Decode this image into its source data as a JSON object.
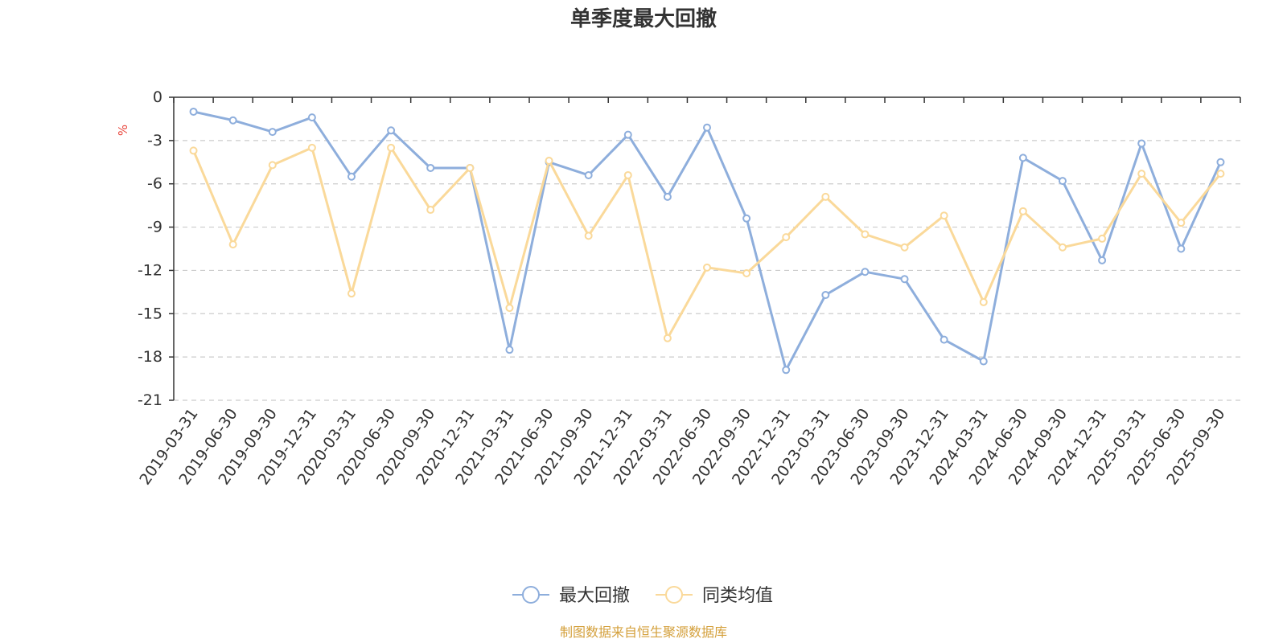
{
  "chart_data": {
    "type": "line",
    "title": "单季度最大回撤",
    "ylabel": "%",
    "xlabel": "",
    "ylim": [
      -21,
      0
    ],
    "yticks": [
      0,
      -3,
      -6,
      -9,
      -12,
      -15,
      -18,
      -21
    ],
    "grid": true,
    "legend_position": "bottom-center",
    "categories": [
      "2019-03-31",
      "2019-06-30",
      "2019-09-30",
      "2019-12-31",
      "2020-03-31",
      "2020-06-30",
      "2020-09-30",
      "2020-12-31",
      "2021-03-31",
      "2021-06-30",
      "2021-09-30",
      "2021-12-31",
      "2022-03-31",
      "2022-06-30",
      "2022-09-30",
      "2022-12-31",
      "2023-03-31",
      "2023-06-30",
      "2023-09-30",
      "2023-12-31",
      "2024-03-31",
      "2024-06-30",
      "2024-09-30",
      "2024-12-31",
      "2025-03-31",
      "2025-06-30",
      "2025-09-30"
    ],
    "series": [
      {
        "name": "最大回撤",
        "color": "#8eaedc",
        "values": [
          -1.0,
          -1.6,
          -2.4,
          -1.4,
          -5.5,
          -2.3,
          -4.9,
          -4.9,
          -17.5,
          -4.5,
          -5.4,
          -2.6,
          -6.9,
          -2.1,
          -8.4,
          -18.9,
          -13.7,
          -12.1,
          -12.6,
          -16.8,
          -18.3,
          -4.2,
          -5.8,
          -11.3,
          -3.2,
          -10.5,
          -4.5
        ]
      },
      {
        "name": "同类均值",
        "color": "#fad99a",
        "values": [
          -3.7,
          -10.2,
          -4.7,
          -3.5,
          -13.6,
          -3.5,
          -7.8,
          -4.9,
          -14.6,
          -4.4,
          -9.6,
          -5.4,
          -16.7,
          -11.8,
          -12.2,
          -9.7,
          -6.9,
          -9.5,
          -10.4,
          -8.2,
          -14.2,
          -7.9,
          -10.4,
          -9.8,
          -5.3,
          -8.7,
          -5.3
        ]
      }
    ],
    "source": "制图数据来自恒生聚源数据库"
  },
  "colors": {
    "axis": "#333333",
    "grid": "#cccccc",
    "unit_label": "#e8463c",
    "source_text": "#d4a03c"
  }
}
